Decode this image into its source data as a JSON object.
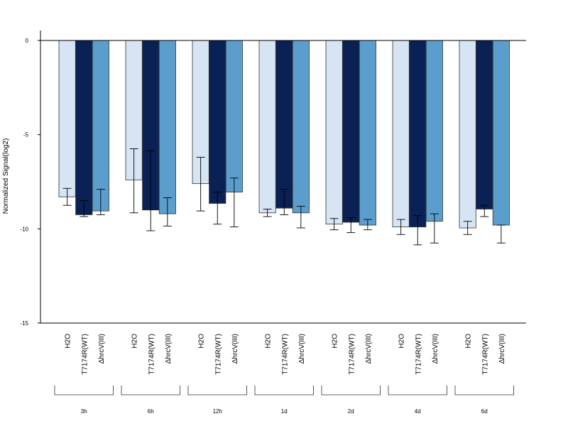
{
  "chart_data": {
    "type": "bar",
    "title": "",
    "ylabel": "Normalized Signal(log2)",
    "xlabel": "",
    "ylim": [
      -15,
      0.5
    ],
    "yticks": [
      0,
      -5,
      -10,
      -15
    ],
    "grid": false,
    "legend": "none",
    "groups": [
      "3h",
      "6h",
      "12h",
      "1d",
      "2d",
      "4d",
      "6d"
    ],
    "conditions": [
      "H2O",
      "T7174R(WT)",
      "ΔhrcV(III)"
    ],
    "colors": [
      "#d6e4f3",
      "#0a2155",
      "#5b9ecd"
    ],
    "series": [
      {
        "values": [
          -8.3,
          -7.4,
          -7.6,
          -9.15,
          -9.75,
          -9.9,
          -9.95
        ],
        "err_high": [
          -7.85,
          -5.75,
          -6.2,
          -8.95,
          -9.45,
          -9.5,
          -9.6
        ],
        "err_low": [
          -8.75,
          -9.15,
          -9.05,
          -9.35,
          -10.05,
          -10.3,
          -10.3
        ]
      },
      {
        "values": [
          -9.25,
          -9.0,
          -8.65,
          -8.9,
          -9.65,
          -9.9,
          -8.95
        ],
        "err_high": [
          -8.5,
          -5.85,
          -8.05,
          -7.9,
          -9.4,
          -9.3,
          -8.75
        ],
        "err_low": [
          -9.35,
          -10.1,
          -9.75,
          -9.25,
          -10.2,
          -10.85,
          -9.35
        ]
      },
      {
        "values": [
          -9.05,
          -9.2,
          -8.05,
          -9.15,
          -9.8,
          -9.6,
          -9.8
        ],
        "err_high": [
          -7.9,
          -8.35,
          -7.3,
          -8.8,
          -9.5,
          -9.2,
          -9.8
        ],
        "err_low": [
          -9.25,
          -9.85,
          -9.9,
          -9.95,
          -10.05,
          -10.75,
          -10.75
        ]
      }
    ]
  }
}
